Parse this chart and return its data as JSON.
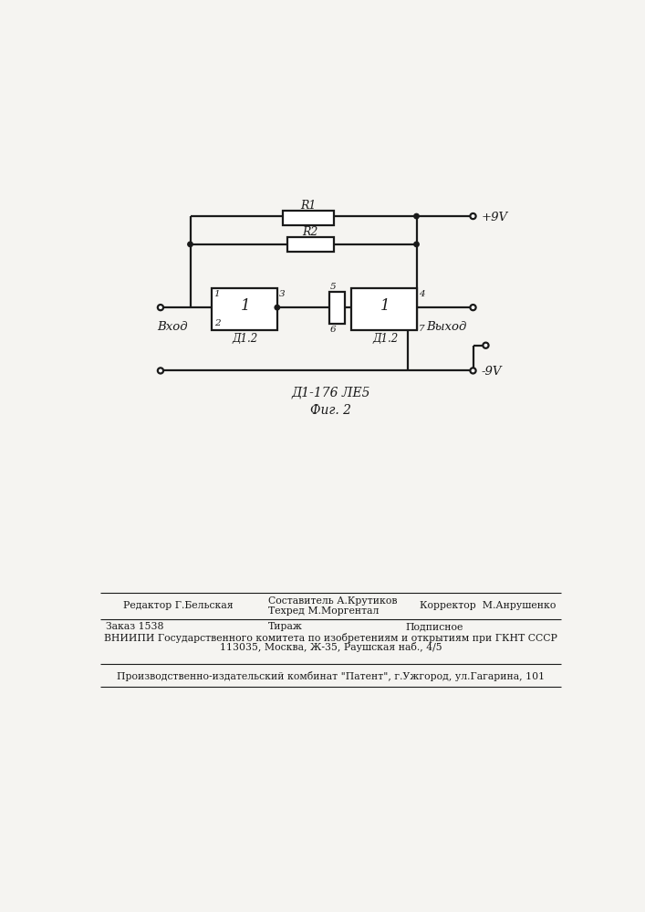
{
  "bg_color": "#f5f4f1",
  "line_color": "#1a1a1a",
  "label_R1": "R1",
  "label_R2": "R2",
  "label_D1": "Д1.2",
  "label_D2": "Д1.2",
  "label_1a": "1",
  "label_1b": "1",
  "title_circuit": "Д1-176 ЛЕ5",
  "fig_label": "Фиг. 2",
  "label_vhod": "Вход",
  "label_vyhod": "Выход",
  "label_plus9v": "+9V",
  "label_minus9v": "-9V",
  "footer_editor": "Редактор Г.Бельская",
  "footer_sostavitel": "Составитель А.Крутиков",
  "footer_tehred": "Техред М.Моргентал",
  "footer_corrector": "Корректор  М.Анрушенко",
  "footer_order": "Заказ 1538",
  "footer_tirazh": "Тираж",
  "footer_podpisnoe": "Подписное",
  "footer_vniipи": "ВНИИПИ Государственного комитета по изобретениям и открытиям при ГКНТ СССР",
  "footer_address": "113035, Москва, Ж-35, Раушская наб., 4/5",
  "footer_patent": "Производственно-издательский комбинат \"Патент\", г.Ужгород, ул.Гагарина, 101"
}
